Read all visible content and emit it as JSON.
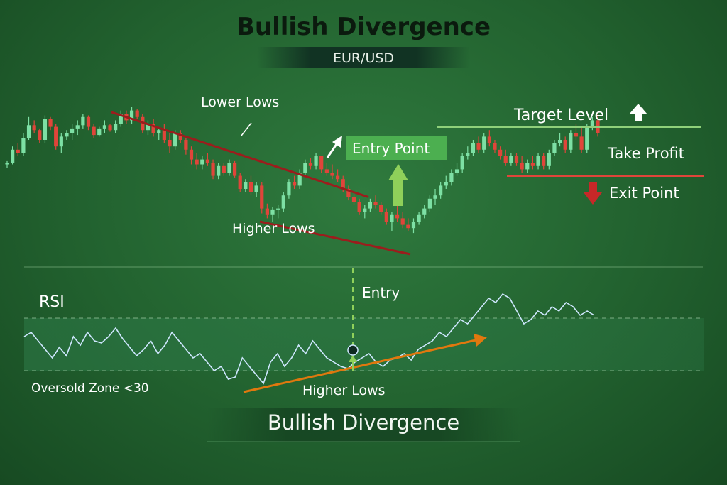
{
  "title": "Bullish Divergence",
  "subtitle": "EUR/USD",
  "footer_title": "Bullish Divergence",
  "labels": {
    "lower_lows": "Lower Lows",
    "higher_lows_price": "Higher Lows",
    "entry_point": "Entry Point",
    "target_level": "Target Level",
    "take_profit": "Take Profit",
    "exit_point": "Exit Point",
    "rsi": "RSI",
    "entry": "Entry",
    "oversold": "Oversold Zone <30",
    "higher_lows_rsi": "Higher Lows"
  },
  "colors": {
    "bull": "#7de0a4",
    "bear": "#e0453a",
    "trendline": "#9b1d1d",
    "target_line": "#8fd07a",
    "rsi_line": "#cfe7ff",
    "rsi_trend": "#e0780e",
    "entry_box": "#4caf50",
    "up_arrow": "#8fd05a",
    "down_arrow": "#c62828"
  },
  "chart_data": [
    {
      "type": "candlestick",
      "title": "EUR/USD",
      "candles": [
        [
          0.55,
          0.57,
          0.53,
          0.56
        ],
        [
          0.56,
          0.66,
          0.55,
          0.64
        ],
        [
          0.64,
          0.68,
          0.6,
          0.62
        ],
        [
          0.62,
          0.74,
          0.6,
          0.71
        ],
        [
          0.71,
          0.84,
          0.7,
          0.79
        ],
        [
          0.79,
          0.82,
          0.74,
          0.76
        ],
        [
          0.76,
          0.77,
          0.68,
          0.7
        ],
        [
          0.7,
          0.85,
          0.68,
          0.83
        ],
        [
          0.83,
          0.84,
          0.76,
          0.78
        ],
        [
          0.78,
          0.8,
          0.64,
          0.66
        ],
        [
          0.66,
          0.74,
          0.62,
          0.72
        ],
        [
          0.72,
          0.76,
          0.7,
          0.74
        ],
        [
          0.74,
          0.8,
          0.7,
          0.77
        ],
        [
          0.77,
          0.82,
          0.73,
          0.79
        ],
        [
          0.79,
          0.86,
          0.77,
          0.84
        ],
        [
          0.84,
          0.85,
          0.76,
          0.78
        ],
        [
          0.78,
          0.8,
          0.71,
          0.73
        ],
        [
          0.73,
          0.78,
          0.72,
          0.77
        ],
        [
          0.77,
          0.82,
          0.74,
          0.79
        ],
        [
          0.79,
          0.8,
          0.75,
          0.76
        ],
        [
          0.76,
          0.82,
          0.74,
          0.8
        ],
        [
          0.8,
          0.88,
          0.78,
          0.86
        ],
        [
          0.86,
          0.88,
          0.8,
          0.82
        ],
        [
          0.82,
          0.9,
          0.8,
          0.88
        ],
        [
          0.88,
          0.89,
          0.83,
          0.84
        ],
        [
          0.84,
          0.86,
          0.74,
          0.76
        ],
        [
          0.76,
          0.82,
          0.73,
          0.8
        ],
        [
          0.8,
          0.83,
          0.72,
          0.74
        ],
        [
          0.74,
          0.78,
          0.7,
          0.76
        ],
        [
          0.76,
          0.8,
          0.68,
          0.7
        ],
        [
          0.7,
          0.74,
          0.62,
          0.66
        ],
        [
          0.66,
          0.76,
          0.64,
          0.74
        ],
        [
          0.74,
          0.76,
          0.68,
          0.7
        ],
        [
          0.7,
          0.72,
          0.61,
          0.64
        ],
        [
          0.64,
          0.66,
          0.55,
          0.58
        ],
        [
          0.58,
          0.62,
          0.52,
          0.55
        ],
        [
          0.55,
          0.6,
          0.52,
          0.58
        ],
        [
          0.58,
          0.62,
          0.54,
          0.56
        ],
        [
          0.56,
          0.58,
          0.46,
          0.48
        ],
        [
          0.48,
          0.56,
          0.46,
          0.54
        ],
        [
          0.54,
          0.56,
          0.48,
          0.5
        ],
        [
          0.5,
          0.58,
          0.48,
          0.56
        ],
        [
          0.56,
          0.57,
          0.47,
          0.48
        ],
        [
          0.48,
          0.5,
          0.38,
          0.4
        ],
        [
          0.4,
          0.46,
          0.38,
          0.44
        ],
        [
          0.44,
          0.48,
          0.36,
          0.38
        ],
        [
          0.38,
          0.44,
          0.35,
          0.42
        ],
        [
          0.42,
          0.44,
          0.25,
          0.28
        ],
        [
          0.28,
          0.31,
          0.22,
          0.24
        ],
        [
          0.24,
          0.29,
          0.2,
          0.27
        ],
        [
          0.27,
          0.3,
          0.22,
          0.28
        ],
        [
          0.28,
          0.38,
          0.26,
          0.36
        ],
        [
          0.36,
          0.46,
          0.34,
          0.44
        ],
        [
          0.44,
          0.48,
          0.4,
          0.42
        ],
        [
          0.42,
          0.52,
          0.4,
          0.5
        ],
        [
          0.5,
          0.58,
          0.48,
          0.56
        ],
        [
          0.56,
          0.59,
          0.52,
          0.54
        ],
        [
          0.54,
          0.62,
          0.52,
          0.6
        ],
        [
          0.6,
          0.6,
          0.5,
          0.52
        ],
        [
          0.52,
          0.56,
          0.48,
          0.5
        ],
        [
          0.5,
          0.55,
          0.46,
          0.48
        ],
        [
          0.48,
          0.52,
          0.44,
          0.46
        ],
        [
          0.46,
          0.48,
          0.38,
          0.4
        ],
        [
          0.4,
          0.42,
          0.33,
          0.35
        ],
        [
          0.35,
          0.38,
          0.3,
          0.32
        ],
        [
          0.32,
          0.34,
          0.24,
          0.26
        ],
        [
          0.26,
          0.3,
          0.22,
          0.28
        ],
        [
          0.28,
          0.34,
          0.26,
          0.32
        ],
        [
          0.32,
          0.36,
          0.28,
          0.3
        ],
        [
          0.3,
          0.32,
          0.24,
          0.26
        ],
        [
          0.26,
          0.28,
          0.18,
          0.2
        ],
        [
          0.2,
          0.26,
          0.14,
          0.24
        ],
        [
          0.24,
          0.3,
          0.2,
          0.22
        ],
        [
          0.22,
          0.26,
          0.16,
          0.18
        ],
        [
          0.18,
          0.22,
          0.14,
          0.16
        ],
        [
          0.16,
          0.22,
          0.13,
          0.2
        ],
        [
          0.2,
          0.26,
          0.18,
          0.24
        ],
        [
          0.24,
          0.3,
          0.22,
          0.28
        ],
        [
          0.28,
          0.36,
          0.26,
          0.34
        ],
        [
          0.34,
          0.4,
          0.3,
          0.36
        ],
        [
          0.36,
          0.44,
          0.34,
          0.42
        ],
        [
          0.42,
          0.48,
          0.4,
          0.44
        ],
        [
          0.44,
          0.52,
          0.42,
          0.5
        ],
        [
          0.5,
          0.56,
          0.48,
          0.52
        ],
        [
          0.52,
          0.62,
          0.5,
          0.6
        ],
        [
          0.6,
          0.66,
          0.58,
          0.62
        ],
        [
          0.62,
          0.7,
          0.6,
          0.68
        ],
        [
          0.68,
          0.72,
          0.62,
          0.64
        ],
        [
          0.64,
          0.74,
          0.62,
          0.72
        ],
        [
          0.72,
          0.76,
          0.66,
          0.68
        ],
        [
          0.68,
          0.7,
          0.62,
          0.64
        ],
        [
          0.64,
          0.66,
          0.58,
          0.6
        ],
        [
          0.6,
          0.64,
          0.54,
          0.56
        ],
        [
          0.56,
          0.62,
          0.54,
          0.6
        ],
        [
          0.6,
          0.62,
          0.54,
          0.56
        ],
        [
          0.56,
          0.6,
          0.5,
          0.52
        ],
        [
          0.52,
          0.58,
          0.5,
          0.56
        ],
        [
          0.56,
          0.6,
          0.52,
          0.54
        ],
        [
          0.54,
          0.62,
          0.52,
          0.6
        ],
        [
          0.6,
          0.62,
          0.52,
          0.54
        ],
        [
          0.54,
          0.64,
          0.52,
          0.62
        ],
        [
          0.62,
          0.7,
          0.6,
          0.68
        ],
        [
          0.68,
          0.74,
          0.66,
          0.7
        ],
        [
          0.7,
          0.72,
          0.62,
          0.64
        ],
        [
          0.64,
          0.76,
          0.62,
          0.74
        ],
        [
          0.74,
          0.8,
          0.7,
          0.72
        ],
        [
          0.72,
          0.78,
          0.62,
          0.64
        ],
        [
          0.64,
          0.8,
          0.62,
          0.78
        ],
        [
          0.78,
          0.84,
          0.76,
          0.82
        ],
        [
          0.82,
          0.86,
          0.72,
          0.74
        ]
      ],
      "trendline_lower_lows": [
        [
          0.31,
          0.87
        ],
        [
          1.13,
          0.35
        ]
      ],
      "trendline_higher_lows": [
        [
          0.79,
          0.2
        ],
        [
          1.25,
          0.0
        ]
      ],
      "target_level": 0.58,
      "exit_level": 0.52
    },
    {
      "type": "line",
      "title": "RSI",
      "x": [
        0,
        1,
        2,
        3,
        4,
        5,
        6,
        7,
        8,
        9,
        10,
        11,
        12,
        13,
        14,
        15,
        16,
        17,
        18,
        19,
        20,
        21,
        22,
        23,
        24,
        25,
        26,
        27,
        28,
        29,
        30,
        31,
        32,
        33,
        34,
        35,
        36,
        37,
        38,
        39,
        40,
        41,
        42,
        43,
        44,
        45,
        46,
        47,
        48,
        49,
        50,
        51,
        52,
        53,
        54,
        55,
        56,
        57,
        58,
        59,
        60,
        61,
        62,
        63,
        64,
        65,
        66,
        67,
        68,
        69,
        70,
        71,
        72,
        73,
        74,
        75,
        76,
        77,
        78,
        79,
        80,
        81
      ],
      "values": [
        42,
        44,
        40,
        36,
        32,
        37,
        33,
        42,
        38,
        44,
        40,
        39,
        42,
        46,
        41,
        37,
        33,
        36,
        40,
        34,
        38,
        44,
        40,
        36,
        32,
        34,
        30,
        26,
        28,
        22,
        23,
        32,
        28,
        24,
        20,
        30,
        34,
        28,
        32,
        38,
        34,
        40,
        36,
        32,
        30,
        28,
        27,
        30,
        32,
        34,
        30,
        28,
        31,
        32,
        34,
        31,
        36,
        38,
        40,
        44,
        42,
        46,
        50,
        48,
        52,
        56,
        60,
        58,
        62,
        60,
        54,
        48,
        50,
        54,
        52,
        56,
        54,
        58,
        56,
        52,
        54,
        52
      ]
    }
  ]
}
